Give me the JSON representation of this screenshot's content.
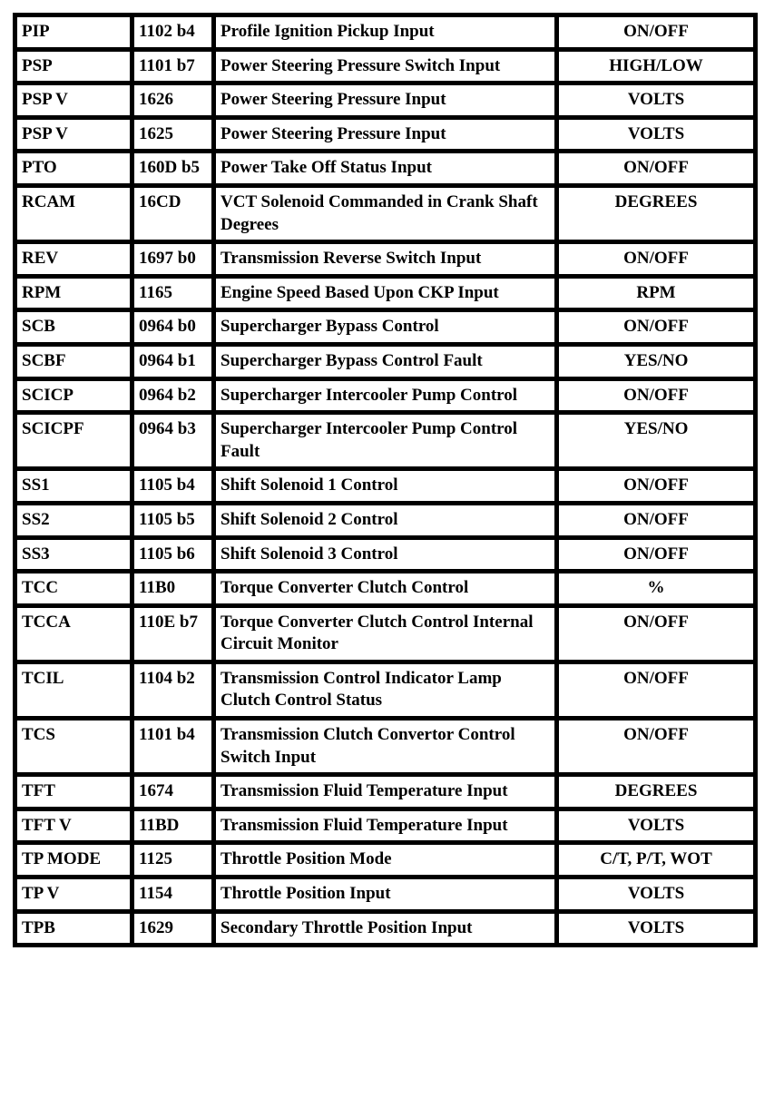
{
  "rows": [
    {
      "pid": "PIP",
      "id": "1102 b4",
      "desc": "Profile Ignition Pickup Input",
      "unit": "ON/OFF"
    },
    {
      "pid": "PSP",
      "id": "1101 b7",
      "desc": "Power Steering Pressure Switch Input",
      "unit": "HIGH/LOW"
    },
    {
      "pid": "PSP V",
      "id": "1626",
      "desc": "Power Steering Pressure Input",
      "unit": "VOLTS"
    },
    {
      "pid": "PSP V",
      "id": "1625",
      "desc": "Power Steering Pressure Input",
      "unit": "VOLTS"
    },
    {
      "pid": "PTO",
      "id": "160D b5",
      "desc": "Power Take Off Status Input",
      "unit": "ON/OFF"
    },
    {
      "pid": "RCAM",
      "id": "16CD",
      "desc": "VCT Solenoid Commanded in Crank Shaft Degrees",
      "unit": "DEGREES"
    },
    {
      "pid": "REV",
      "id": "1697 b0",
      "desc": "Transmission Reverse Switch Input",
      "unit": "ON/OFF"
    },
    {
      "pid": "RPM",
      "id": "1165",
      "desc": "Engine Speed Based Upon CKP Input",
      "unit": "RPM"
    },
    {
      "pid": "SCB",
      "id": "0964 b0",
      "desc": "Supercharger Bypass Control",
      "unit": "ON/OFF"
    },
    {
      "pid": "SCBF",
      "id": "0964 b1",
      "desc": "Supercharger Bypass Control Fault",
      "unit": "YES/NO"
    },
    {
      "pid": "SCICP",
      "id": "0964 b2",
      "desc": "Supercharger Intercooler Pump Control",
      "unit": "ON/OFF"
    },
    {
      "pid": "SCICPF",
      "id": "0964 b3",
      "desc": "Supercharger Intercooler Pump Control Fault",
      "unit": "YES/NO"
    },
    {
      "pid": "SS1",
      "id": "1105 b4",
      "desc": "Shift Solenoid 1 Control",
      "unit": "ON/OFF"
    },
    {
      "pid": "SS2",
      "id": "1105 b5",
      "desc": "Shift Solenoid 2 Control",
      "unit": "ON/OFF"
    },
    {
      "pid": "SS3",
      "id": "1105 b6",
      "desc": "Shift Solenoid 3 Control",
      "unit": "ON/OFF"
    },
    {
      "pid": "TCC",
      "id": "11B0",
      "desc": "Torque Converter Clutch Control",
      "unit": "%"
    },
    {
      "pid": "TCCA",
      "id": "110E b7",
      "desc": "Torque Converter Clutch Control Internal Circuit Monitor",
      "unit": "ON/OFF"
    },
    {
      "pid": "TCIL",
      "id": "1104 b2",
      "desc": "Transmission Control Indicator Lamp Clutch Control Status",
      "unit": "ON/OFF"
    },
    {
      "pid": "TCS",
      "id": "1101 b4",
      "desc": "Transmission Clutch Convertor Control Switch Input",
      "unit": "ON/OFF"
    },
    {
      "pid": "TFT",
      "id": "1674",
      "desc": "Transmission Fluid Temperature Input",
      "unit": "DEGREES"
    },
    {
      "pid": "TFT V",
      "id": "11BD",
      "desc": "Transmission Fluid Temperature Input",
      "unit": "VOLTS"
    },
    {
      "pid": "TP MODE",
      "id": "1125",
      "desc": "Throttle Position Mode",
      "unit": "C/T, P/T, WOT"
    },
    {
      "pid": "TP V",
      "id": "1154",
      "desc": "Throttle Position Input",
      "unit": "VOLTS"
    },
    {
      "pid": "TPB",
      "id": "1629",
      "desc": "Secondary Throttle Position Input",
      "unit": "VOLTS"
    }
  ]
}
